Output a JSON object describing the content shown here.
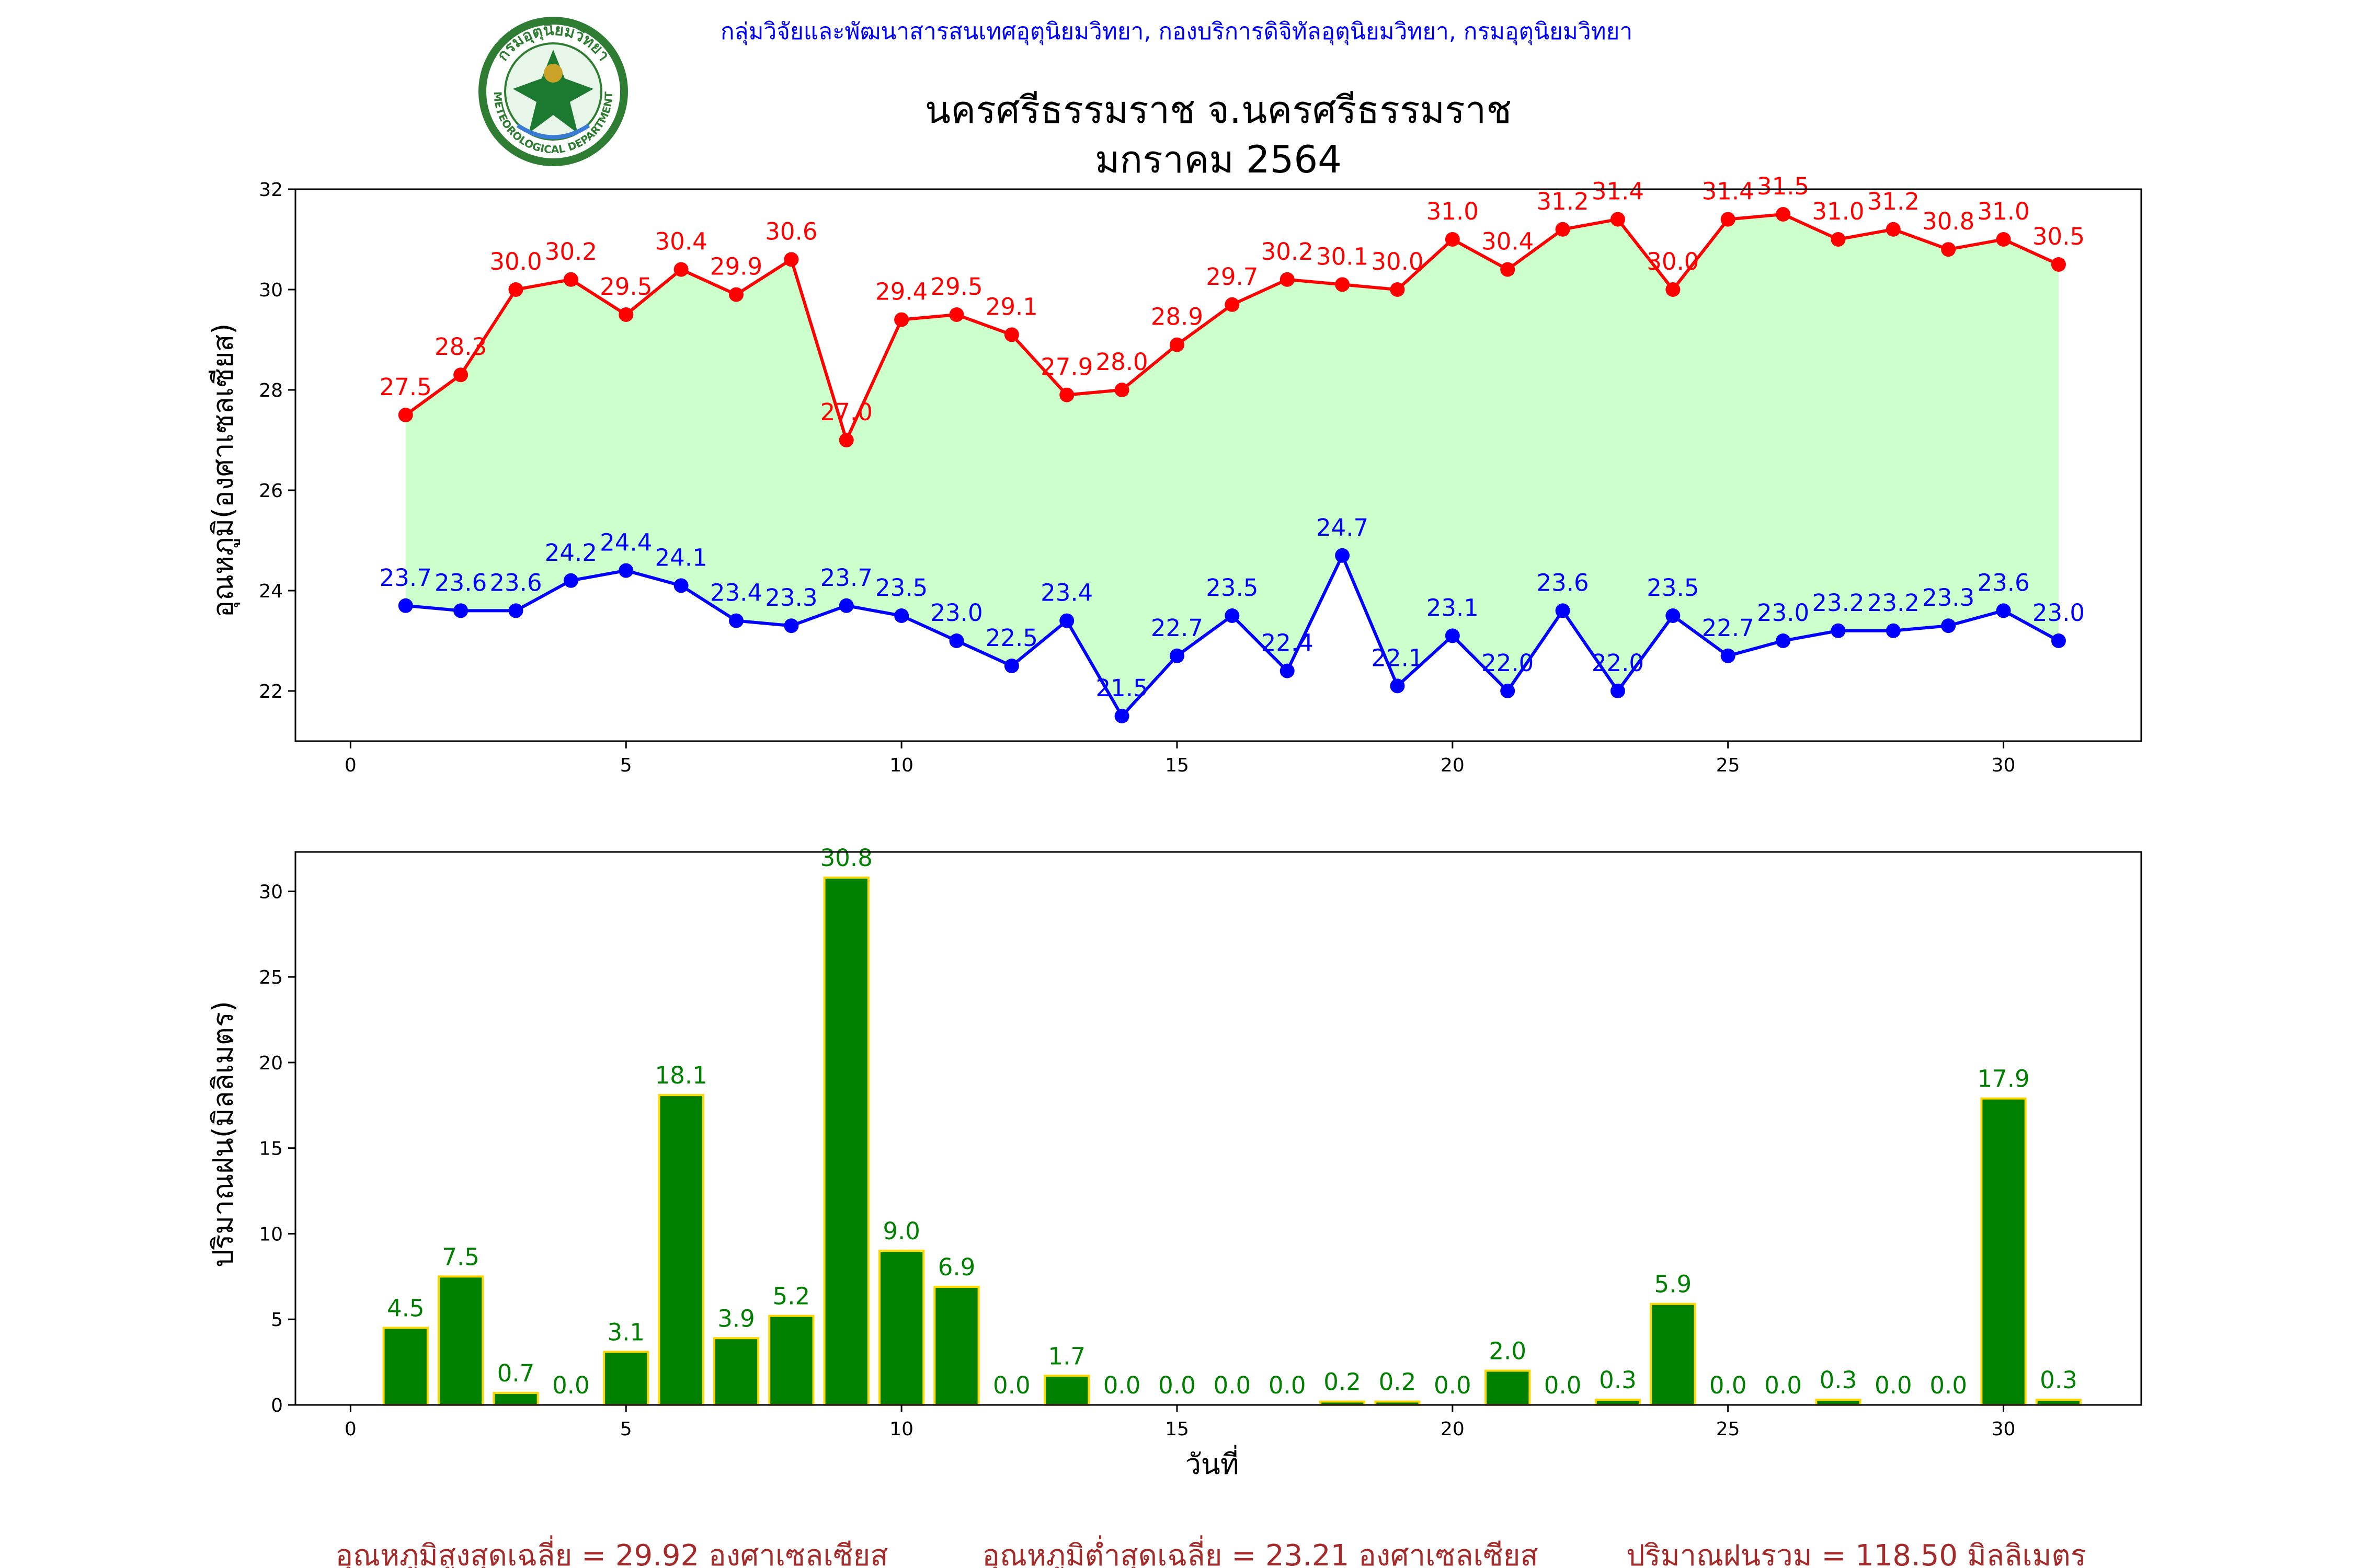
{
  "header": {
    "agency": "กลุ่มวิจัยและพัฒนาสารสนเทศอุตุนิยมวิทยา, กองบริการดิจิทัลอุตุนิยมวิทยา, กรมอุตุนิยมวิทยา",
    "title_line1": "นครศรีธรรมราช จ.นครศรีธรรมราช",
    "title_line2": "มกราคม 2564",
    "logo_text": "กรมอุตุนิยมวิทยา",
    "logo_text_en": "METEOROLOGICAL DEPARTMENT"
  },
  "footer": {
    "avg_max": "อุณหภูมิสูงสุดเฉลี่ย = 29.92 องศาเซลเซียส",
    "avg_min": "อุณหภูมิต่ำสุดเฉลี่ย = 23.21 องศาเซลเซียส",
    "total_rain": "ปริมาณฝนรวม = 118.50 มิลลิเมตร"
  },
  "colors": {
    "max_line": "#ff0000",
    "min_line": "#0000ff",
    "fill": "#ccffcc",
    "bar": "#008000",
    "bar_edge": "#ffd700",
    "agency_text": "#0000ff",
    "footer_text": "#a52a2a"
  },
  "chart_data": [
    {
      "type": "line",
      "ylabel": "อุณหภูมิ(องศาเซลเซียส)",
      "xlim": [
        -1,
        32.5
      ],
      "ylim": [
        21,
        32
      ],
      "xticks": [
        0,
        5,
        10,
        15,
        20,
        25,
        30
      ],
      "yticks": [
        22,
        24,
        26,
        28,
        30,
        32
      ],
      "x": [
        1,
        2,
        3,
        4,
        5,
        6,
        7,
        8,
        9,
        10,
        11,
        12,
        13,
        14,
        15,
        16,
        17,
        18,
        19,
        20,
        21,
        22,
        23,
        24,
        25,
        26,
        27,
        28,
        29,
        30,
        31
      ],
      "series": [
        {
          "key": "max",
          "values": [
            27.5,
            28.3,
            30.0,
            30.2,
            29.5,
            30.4,
            29.9,
            30.6,
            27.0,
            29.4,
            29.5,
            29.1,
            27.9,
            28.0,
            28.9,
            29.7,
            30.2,
            30.1,
            30.0,
            31.0,
            30.4,
            31.2,
            31.4,
            30.0,
            31.4,
            31.5,
            31.0,
            31.2,
            30.8,
            31.0,
            30.5
          ]
        },
        {
          "key": "min",
          "values": [
            23.7,
            23.6,
            23.6,
            24.2,
            24.4,
            24.1,
            23.4,
            23.3,
            23.7,
            23.5,
            23.0,
            22.5,
            23.4,
            21.5,
            22.7,
            23.5,
            22.4,
            24.7,
            22.1,
            23.1,
            22.0,
            23.6,
            22.0,
            23.5,
            22.7,
            23.0,
            23.2,
            23.2,
            23.3,
            23.6,
            23.0
          ]
        }
      ]
    },
    {
      "type": "bar",
      "xlabel": "วันที่",
      "ylabel": "ปริมาณฝน(มิลลิเมตร)",
      "xlim": [
        -1,
        32.5
      ],
      "ylim": [
        0,
        32.3
      ],
      "xticks": [
        0,
        5,
        10,
        15,
        20,
        25,
        30
      ],
      "yticks": [
        0,
        5,
        10,
        15,
        20,
        25,
        30
      ],
      "x": [
        1,
        2,
        3,
        4,
        5,
        6,
        7,
        8,
        9,
        10,
        11,
        12,
        13,
        14,
        15,
        16,
        17,
        18,
        19,
        20,
        21,
        22,
        23,
        24,
        25,
        26,
        27,
        28,
        29,
        30,
        31
      ],
      "values": [
        4.5,
        7.5,
        0.7,
        0.0,
        3.1,
        18.1,
        3.9,
        5.2,
        30.8,
        9.0,
        6.9,
        0.0,
        1.7,
        0.0,
        0.0,
        0.0,
        0.0,
        0.2,
        0.2,
        0.0,
        2.0,
        0.0,
        0.3,
        5.9,
        0.0,
        0.0,
        0.3,
        0.0,
        0.0,
        17.9,
        0.3
      ]
    }
  ]
}
